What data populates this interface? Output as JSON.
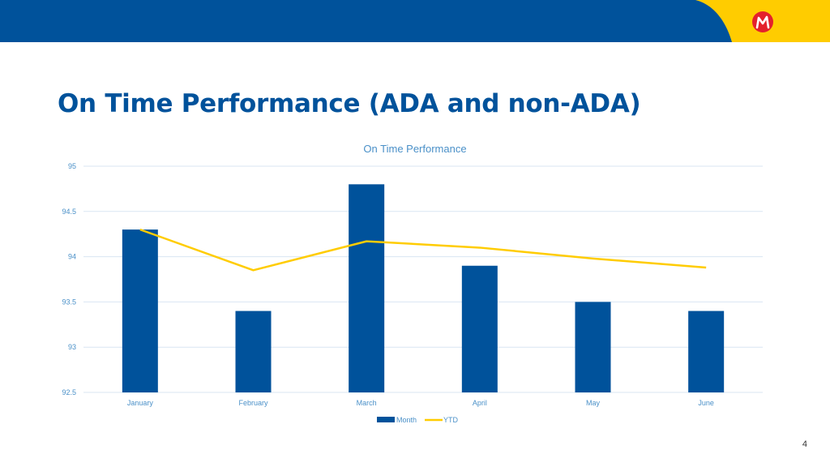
{
  "colors": {
    "brand_blue": "#00529b",
    "brand_yellow": "#ffcc00",
    "logo_red": "#e4202c",
    "grid": "#d9e6f2",
    "axis_text": "#4a90c8"
  },
  "header": {
    "logo_icon": "metro-m-logo-icon"
  },
  "slide": {
    "title": "On Time Performance (ADA and non-ADA)",
    "page_number": "4"
  },
  "chart_data": {
    "type": "bar",
    "title": "On Time Performance",
    "categories": [
      "January",
      "February",
      "March",
      "April",
      "May",
      "June"
    ],
    "series": [
      {
        "name": "Month",
        "type": "bar",
        "values": [
          94.3,
          93.4,
          94.8,
          93.9,
          93.5,
          93.4
        ]
      },
      {
        "name": "YTD",
        "type": "line",
        "values": [
          94.3,
          93.85,
          94.17,
          94.1,
          93.98,
          93.88
        ]
      }
    ],
    "ylim": [
      92.5,
      95
    ],
    "yticks": [
      "95",
      "94.5",
      "94",
      "93.5",
      "93",
      "92.5"
    ],
    "grid": true,
    "legend_position": "bottom"
  }
}
